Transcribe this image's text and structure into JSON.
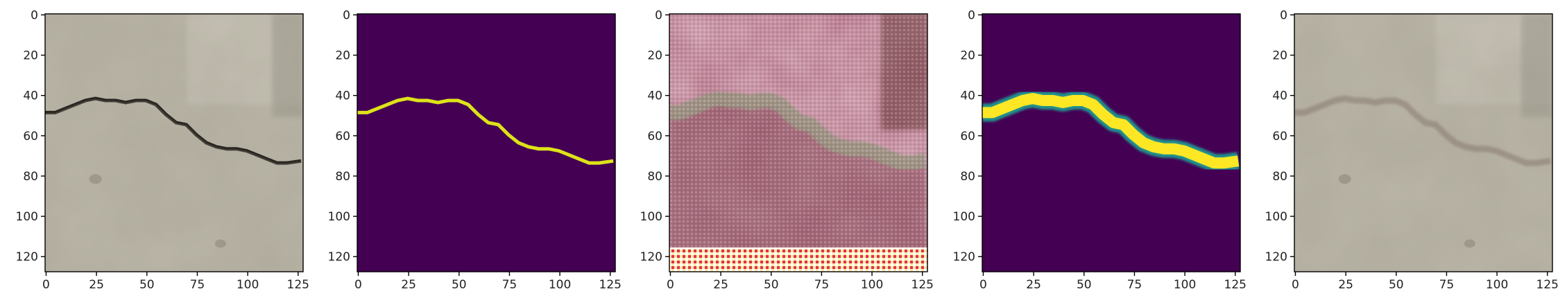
{
  "figure": {
    "description_panels": 5,
    "colors": {
      "mask_background": "#440154",
      "mask_crack": "#dde318",
      "mask_mid": "#21918c",
      "mask_bright": "#fde725",
      "pavement": "#b9b4a4"
    },
    "panels": [
      {
        "name": "original-crack-photo",
        "kind": "photo",
        "x_ticks": [
          "0",
          "25",
          "50",
          "75",
          "100",
          "125"
        ],
        "y_ticks": [
          "0",
          "20",
          "40",
          "60",
          "80",
          "100",
          "120"
        ]
      },
      {
        "name": "ground-truth-mask",
        "kind": "binary-mask",
        "x_ticks": [
          "0",
          "25",
          "50",
          "75",
          "100",
          "125"
        ],
        "y_ticks": [
          "0",
          "20",
          "40",
          "60",
          "80",
          "100",
          "120"
        ]
      },
      {
        "name": "generated-image",
        "kind": "synthetic-photo",
        "x_ticks": [
          "0",
          "25",
          "50",
          "75",
          "100",
          "125"
        ],
        "y_ticks": [
          "0",
          "20",
          "40",
          "60",
          "80",
          "100",
          "120"
        ]
      },
      {
        "name": "smoothed-mask",
        "kind": "soft-mask",
        "x_ticks": [
          "0",
          "25",
          "50",
          "75",
          "100",
          "125"
        ],
        "y_ticks": [
          "0",
          "20",
          "40",
          "60",
          "80",
          "100",
          "120"
        ]
      },
      {
        "name": "result-photo",
        "kind": "photo-faint-crack",
        "x_ticks": [
          "0",
          "25",
          "50",
          "75",
          "100",
          "125"
        ],
        "y_ticks": [
          "0",
          "20",
          "40",
          "60",
          "80",
          "100",
          "120"
        ]
      }
    ],
    "crack_path": [
      [
        0,
        49
      ],
      [
        5,
        49
      ],
      [
        10,
        47
      ],
      [
        15,
        45
      ],
      [
        20,
        43
      ],
      [
        25,
        42
      ],
      [
        30,
        43
      ],
      [
        35,
        43
      ],
      [
        40,
        44
      ],
      [
        45,
        43
      ],
      [
        50,
        43
      ],
      [
        55,
        45
      ],
      [
        60,
        50
      ],
      [
        65,
        54
      ],
      [
        70,
        55
      ],
      [
        75,
        60
      ],
      [
        80,
        64
      ],
      [
        85,
        66
      ],
      [
        90,
        67
      ],
      [
        95,
        67
      ],
      [
        100,
        68
      ],
      [
        105,
        70
      ],
      [
        110,
        72
      ],
      [
        115,
        74
      ],
      [
        120,
        74
      ],
      [
        127,
        73
      ]
    ]
  }
}
